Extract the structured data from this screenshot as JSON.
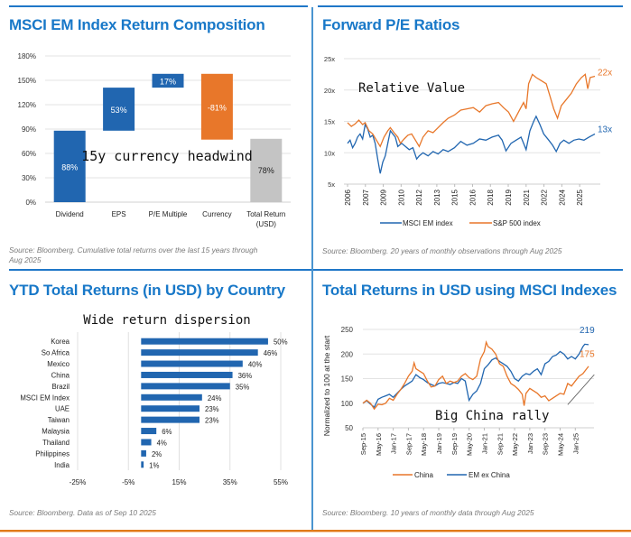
{
  "colors": {
    "blue": "#2166b0",
    "orange": "#e8772a",
    "grey": "#c4c4c4",
    "title_blue": "#1878c8"
  },
  "panels": {
    "top_left": {
      "title": "MSCI EM Index Return Composition",
      "annotation": "15y currency headwind",
      "source_line1": "Source: Bloomberg. Cumulative total returns over the last 15 years through",
      "source_line2": "Aug 2025"
    },
    "top_right": {
      "title": "Forward P/E Ratios",
      "annotation": "Relative Value",
      "source": "Source: Bloomberg. 20 years of monthly observations through Aug 2025"
    },
    "bottom_left": {
      "title": "YTD Total Returns (in USD) by Country",
      "annotation": "Wide return dispersion",
      "source": "Source: Bloomberg. Data as of Sep 10 2025"
    },
    "bottom_right": {
      "title": "Total Returns in USD using MSCI Indexes",
      "annotation": "Big China rally",
      "source": "Source: Bloomberg. 10 years of monthly data through Aug 2025"
    }
  },
  "chart_data": [
    {
      "id": "waterfall",
      "type": "bar",
      "subtype": "waterfall",
      "title": "MSCI EM Index Return Composition",
      "categories": [
        "Dividend",
        "EPS",
        "P/E Multiple",
        "Currency",
        "Total Return (USD)"
      ],
      "category_lines": [
        [
          "Dividend"
        ],
        [
          "EPS"
        ],
        [
          "P/E Multiple"
        ],
        [
          "Currency"
        ],
        [
          "Total Return",
          "(USD)"
        ]
      ],
      "values": [
        88,
        53,
        17,
        -81,
        78
      ],
      "labels": [
        "88%",
        "53%",
        "17%",
        "-81%",
        "78%"
      ],
      "bar_kinds": [
        "increase",
        "increase",
        "increase",
        "decrease",
        "total"
      ],
      "ylim": [
        0,
        180
      ],
      "yticks": [
        0,
        30,
        60,
        90,
        120,
        150,
        180
      ],
      "ytick_labels": [
        "0%",
        "30%",
        "60%",
        "90%",
        "120%",
        "150%",
        "180%"
      ],
      "grid": true,
      "unit": "%"
    },
    {
      "id": "forward_pe",
      "type": "line",
      "title": "Forward P/E Ratios",
      "xlabel": "",
      "ylabel": "",
      "ylim": [
        5,
        25
      ],
      "yticks": [
        5,
        10,
        15,
        20,
        25
      ],
      "ytick_labels": [
        "5x",
        "10x",
        "15x",
        "20x",
        "25x"
      ],
      "xlim": [
        2006.0,
        2025.67
      ],
      "xtick_labels": [
        "2006",
        "2007",
        "2009",
        "2010",
        "2012",
        "2013",
        "2015",
        "2016",
        "2018",
        "2019",
        "2021",
        "2022",
        "2024",
        "2025"
      ],
      "xtick_values": [
        2006.0,
        2007.42,
        2008.84,
        2010.26,
        2011.68,
        2013.1,
        2014.52,
        2015.94,
        2017.36,
        2018.78,
        2020.2,
        2021.62,
        2023.04,
        2024.46
      ],
      "legend_position": "bottom",
      "grid": true,
      "end_labels": [
        "13x",
        "22x"
      ],
      "series": [
        {
          "name": "MSCI EM index",
          "color": "#2166b0",
          "x": [
            2006.0,
            2006.2,
            2006.4,
            2006.6,
            2006.8,
            2007.0,
            2007.2,
            2007.4,
            2007.6,
            2007.8,
            2008.0,
            2008.2,
            2008.4,
            2008.6,
            2008.8,
            2009.0,
            2009.2,
            2009.4,
            2009.6,
            2009.8,
            2010.0,
            2010.3,
            2010.6,
            2010.9,
            2011.2,
            2011.5,
            2011.7,
            2012.0,
            2012.4,
            2012.8,
            2013.2,
            2013.6,
            2014.0,
            2014.5,
            2015.0,
            2015.5,
            2016.0,
            2016.5,
            2017.0,
            2017.5,
            2018.0,
            2018.3,
            2018.6,
            2019.0,
            2019.4,
            2019.8,
            2020.0,
            2020.2,
            2020.5,
            2020.8,
            2021.0,
            2021.3,
            2021.6,
            2022.0,
            2022.3,
            2022.6,
            2022.9,
            2023.2,
            2023.6,
            2024.0,
            2024.4,
            2024.8,
            2025.2,
            2025.67
          ],
          "values": [
            11.5,
            12.0,
            10.8,
            11.5,
            12.5,
            13.0,
            12.2,
            14.5,
            13.8,
            12.5,
            12.8,
            11.5,
            9.0,
            6.7,
            8.5,
            9.5,
            11.5,
            13.5,
            13.0,
            12.5,
            11.0,
            11.5,
            11.0,
            10.5,
            10.8,
            9.0,
            9.5,
            10.0,
            9.5,
            10.2,
            9.8,
            10.5,
            10.2,
            10.8,
            11.8,
            11.2,
            11.5,
            12.2,
            12.0,
            12.5,
            12.8,
            12.0,
            10.3,
            11.5,
            12.0,
            12.5,
            11.5,
            10.5,
            13.5,
            15.0,
            15.8,
            14.5,
            13.0,
            12.0,
            11.2,
            10.2,
            11.5,
            12.0,
            11.5,
            12.0,
            12.2,
            12.0,
            12.5,
            13.0
          ]
        },
        {
          "name": "S&P 500 index",
          "color": "#e8772a",
          "x": [
            2006.0,
            2006.3,
            2006.6,
            2006.9,
            2007.2,
            2007.4,
            2007.7,
            2008.0,
            2008.3,
            2008.6,
            2008.9,
            2009.2,
            2009.4,
            2009.7,
            2010.0,
            2010.2,
            2010.5,
            2010.8,
            2011.1,
            2011.4,
            2011.7,
            2012.0,
            2012.4,
            2012.8,
            2013.2,
            2013.6,
            2014.0,
            2014.5,
            2015.0,
            2015.5,
            2016.0,
            2016.5,
            2017.0,
            2017.5,
            2018.0,
            2018.4,
            2018.8,
            2019.2,
            2019.6,
            2020.0,
            2020.2,
            2020.4,
            2020.7,
            2021.0,
            2021.4,
            2021.8,
            2022.1,
            2022.4,
            2022.7,
            2023.0,
            2023.4,
            2023.8,
            2024.2,
            2024.6,
            2024.9,
            2025.1,
            2025.3,
            2025.67
          ],
          "values": [
            14.8,
            14.2,
            14.6,
            15.2,
            14.5,
            14.8,
            13.5,
            13.0,
            12.0,
            11.0,
            12.5,
            13.5,
            14.0,
            13.2,
            12.5,
            11.5,
            12.2,
            12.8,
            13.0,
            12.0,
            11.0,
            12.5,
            13.5,
            13.2,
            14.0,
            14.8,
            15.5,
            16.0,
            16.8,
            17.0,
            17.2,
            16.5,
            17.5,
            17.8,
            18.0,
            17.2,
            16.5,
            15.0,
            16.5,
            18.0,
            17.0,
            21.0,
            22.5,
            22.0,
            21.5,
            21.0,
            19.0,
            17.0,
            15.5,
            17.5,
            18.5,
            19.5,
            21.0,
            22.0,
            22.5,
            20.2,
            22.0,
            22.2
          ]
        }
      ]
    },
    {
      "id": "ytd_country",
      "type": "bar",
      "orientation": "horizontal",
      "title": "YTD Total Returns (in USD) by Country",
      "categories": [
        "Korea",
        "So Africa",
        "Mexico",
        "China",
        "Brazil",
        "MSCI EM Index",
        "UAE",
        "Taiwan",
        "Malaysia",
        "Thailand",
        "Philippines",
        "India"
      ],
      "values": [
        50,
        46,
        40,
        36,
        35,
        24,
        23,
        23,
        6,
        4,
        2,
        1
      ],
      "labels": [
        "50%",
        "46%",
        "40%",
        "36%",
        "35%",
        "24%",
        "23%",
        "23%",
        "6%",
        "4%",
        "2%",
        "1%"
      ],
      "xlim": [
        -25,
        55
      ],
      "xticks": [
        -25,
        -5,
        15,
        35,
        55
      ],
      "xtick_labels": [
        "-25%",
        "-5%",
        "15%",
        "35%",
        "55%"
      ],
      "grid": true,
      "unit": "%"
    },
    {
      "id": "total_returns",
      "type": "line",
      "title": "Total Returns in USD using MSCI Indexes",
      "ylabel": "Normalized to 100 at the start",
      "ylim": [
        50,
        250
      ],
      "yticks": [
        50,
        100,
        150,
        200,
        250
      ],
      "ytick_labels": [
        "50",
        "100",
        "150",
        "200",
        "250"
      ],
      "xtick_labels": [
        "Sep-15",
        "May-16",
        "Jan-17",
        "Sep-17",
        "May-18",
        "Jan-19",
        "Sep-19",
        "May-20",
        "Jan-21",
        "Sep-21",
        "May-22",
        "Jan-23",
        "Sep-23",
        "May-24",
        "Jan-25"
      ],
      "xtick_months": [
        0,
        8,
        16,
        24,
        32,
        40,
        48,
        56,
        64,
        72,
        80,
        88,
        96,
        104,
        112
      ],
      "xlim_months": [
        0,
        119
      ],
      "legend_position": "bottom",
      "grid": true,
      "end_labels": [
        "219",
        "175"
      ],
      "series": [
        {
          "name": "China",
          "color": "#e8772a",
          "x_months": [
            0,
            2,
            4,
            6,
            8,
            10,
            12,
            14,
            16,
            18,
            20,
            22,
            24,
            26,
            27,
            28,
            30,
            32,
            34,
            36,
            38,
            40,
            42,
            44,
            46,
            48,
            50,
            52,
            54,
            56,
            58,
            60,
            62,
            64,
            65,
            66,
            68,
            70,
            72,
            74,
            76,
            78,
            80,
            82,
            84,
            85,
            86,
            88,
            90,
            92,
            94,
            96,
            98,
            100,
            102,
            104,
            106,
            108,
            110,
            112,
            114,
            116,
            119
          ],
          "values": [
            100,
            106,
            100,
            88,
            98,
            97,
            100,
            110,
            106,
            118,
            128,
            140,
            155,
            165,
            182,
            170,
            165,
            160,
            145,
            133,
            135,
            148,
            155,
            140,
            145,
            142,
            145,
            155,
            160,
            152,
            148,
            155,
            190,
            205,
            224,
            215,
            210,
            200,
            180,
            175,
            155,
            140,
            135,
            128,
            118,
            95,
            120,
            130,
            125,
            120,
            112,
            115,
            105,
            110,
            115,
            120,
            118,
            140,
            135,
            145,
            155,
            160,
            175
          ]
        },
        {
          "name": "EM ex China",
          "color": "#2166b0",
          "x_months": [
            0,
            2,
            4,
            6,
            8,
            10,
            12,
            14,
            16,
            18,
            20,
            22,
            24,
            26,
            28,
            30,
            32,
            34,
            36,
            38,
            40,
            42,
            44,
            46,
            48,
            50,
            52,
            54,
            55,
            56,
            58,
            60,
            62,
            64,
            66,
            68,
            70,
            72,
            74,
            76,
            78,
            80,
            82,
            84,
            86,
            88,
            90,
            92,
            94,
            96,
            98,
            100,
            102,
            104,
            106,
            108,
            110,
            112,
            114,
            116,
            117,
            119
          ],
          "values": [
            100,
            105,
            98,
            92,
            108,
            112,
            115,
            118,
            112,
            120,
            128,
            135,
            140,
            145,
            158,
            152,
            148,
            142,
            138,
            135,
            140,
            142,
            140,
            138,
            142,
            140,
            150,
            145,
            125,
            106,
            118,
            125,
            140,
            170,
            178,
            188,
            192,
            185,
            180,
            175,
            165,
            150,
            145,
            155,
            160,
            158,
            165,
            170,
            158,
            180,
            185,
            195,
            198,
            205,
            200,
            190,
            195,
            190,
            200,
            215,
            220,
            219
          ]
        }
      ]
    }
  ]
}
